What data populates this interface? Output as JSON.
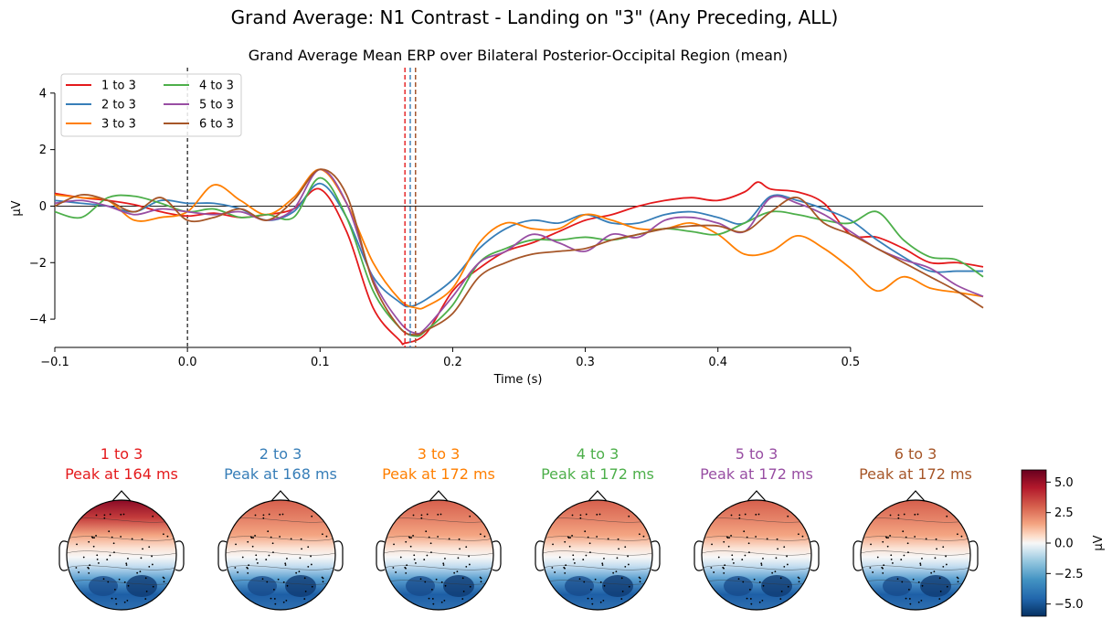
{
  "figure": {
    "suptitle": "Grand Average: N1 Contrast - Landing on \"3\" (Any Preceding, ALL)"
  },
  "chart_data": [
    {
      "type": "line",
      "title": "Grand Average Mean ERP over Bilateral Posterior-Occipital Region (mean)",
      "xlabel": "Time (s)",
      "ylabel": "µV",
      "xlim": [
        -0.1,
        0.6
      ],
      "ylim": [
        -5,
        4.9
      ],
      "xticks": [
        -0.1,
        0.0,
        0.1,
        0.2,
        0.3,
        0.4,
        0.5
      ],
      "xtick_labels": [
        "−0.1",
        "0.0",
        "0.1",
        "0.2",
        "0.3",
        "0.4",
        "0.5"
      ],
      "yticks": [
        -4,
        -2,
        0,
        2,
        4
      ],
      "ytick_labels": [
        "−4",
        "−2",
        "0",
        "2",
        "4"
      ],
      "zero_line": true,
      "stimulus_onset_line": 0.0,
      "legend_placement": "top-left",
      "legend_columns": 2,
      "series": [
        {
          "name": "1 to 3",
          "color": "#e41a1c",
          "peak_latency_s": 0.164,
          "x": [
            -0.1,
            -0.08,
            -0.06,
            -0.04,
            -0.02,
            0.0,
            0.02,
            0.04,
            0.06,
            0.08,
            0.1,
            0.12,
            0.14,
            0.16,
            0.164,
            0.18,
            0.2,
            0.22,
            0.24,
            0.26,
            0.28,
            0.3,
            0.32,
            0.34,
            0.36,
            0.38,
            0.4,
            0.42,
            0.43,
            0.44,
            0.46,
            0.48,
            0.5,
            0.52,
            0.54,
            0.56,
            0.58,
            0.6
          ],
          "y": [
            0.45,
            0.3,
            0.2,
            0.05,
            -0.2,
            -0.35,
            -0.25,
            -0.4,
            -0.3,
            -0.1,
            0.6,
            -0.9,
            -3.6,
            -4.75,
            -4.85,
            -4.5,
            -3.0,
            -2.2,
            -1.6,
            -1.3,
            -0.9,
            -0.5,
            -0.3,
            0.0,
            0.2,
            0.3,
            0.2,
            0.5,
            0.85,
            0.6,
            0.5,
            0.1,
            -1.0,
            -1.1,
            -1.5,
            -2.0,
            -2.0,
            -2.15
          ]
        },
        {
          "name": "2 to 3",
          "color": "#377eb8",
          "peak_latency_s": 0.168,
          "x": [
            -0.1,
            -0.08,
            -0.06,
            -0.04,
            -0.02,
            0.0,
            0.02,
            0.04,
            0.06,
            0.08,
            0.1,
            0.12,
            0.14,
            0.16,
            0.168,
            0.18,
            0.2,
            0.22,
            0.24,
            0.26,
            0.28,
            0.3,
            0.32,
            0.34,
            0.36,
            0.38,
            0.4,
            0.42,
            0.44,
            0.46,
            0.48,
            0.5,
            0.52,
            0.54,
            0.56,
            0.58,
            0.6
          ],
          "y": [
            0.2,
            0.1,
            0.0,
            -0.2,
            0.2,
            0.1,
            0.1,
            -0.1,
            -0.5,
            -0.2,
            0.8,
            -0.4,
            -2.5,
            -3.4,
            -3.55,
            -3.3,
            -2.6,
            -1.5,
            -0.8,
            -0.5,
            -0.6,
            -0.3,
            -0.6,
            -0.6,
            -0.3,
            -0.2,
            -0.4,
            -0.6,
            0.35,
            0.2,
            -0.1,
            -0.5,
            -1.2,
            -1.8,
            -2.3,
            -2.3,
            -2.3
          ]
        },
        {
          "name": "3 to 3",
          "color": "#ff7f00",
          "peak_latency_s": 0.172,
          "x": [
            -0.1,
            -0.08,
            -0.06,
            -0.04,
            -0.02,
            0.0,
            0.02,
            0.04,
            0.06,
            0.08,
            0.1,
            0.12,
            0.14,
            0.16,
            0.172,
            0.18,
            0.2,
            0.22,
            0.24,
            0.26,
            0.28,
            0.3,
            0.32,
            0.34,
            0.36,
            0.38,
            0.4,
            0.42,
            0.44,
            0.46,
            0.48,
            0.5,
            0.52,
            0.54,
            0.56,
            0.58,
            0.6
          ],
          "y": [
            0.4,
            0.3,
            0.2,
            -0.5,
            -0.4,
            -0.2,
            0.75,
            0.2,
            -0.3,
            0.3,
            1.3,
            0.1,
            -2.0,
            -3.3,
            -3.6,
            -3.55,
            -2.9,
            -1.3,
            -0.6,
            -0.8,
            -0.8,
            -0.3,
            -0.5,
            -0.8,
            -0.8,
            -0.6,
            -1.0,
            -1.7,
            -1.6,
            -1.05,
            -1.5,
            -2.2,
            -3.0,
            -2.5,
            -2.9,
            -3.05,
            -3.2
          ]
        },
        {
          "name": "4 to 3",
          "color": "#4daf4a",
          "peak_latency_s": 0.172,
          "x": [
            -0.1,
            -0.08,
            -0.06,
            -0.04,
            -0.02,
            0.0,
            0.02,
            0.04,
            0.06,
            0.08,
            0.1,
            0.12,
            0.14,
            0.16,
            0.172,
            0.18,
            0.2,
            0.22,
            0.24,
            0.26,
            0.28,
            0.3,
            0.32,
            0.34,
            0.36,
            0.38,
            0.4,
            0.42,
            0.44,
            0.46,
            0.48,
            0.5,
            0.52,
            0.54,
            0.56,
            0.58,
            0.6
          ],
          "y": [
            -0.2,
            -0.4,
            0.3,
            0.35,
            0.1,
            -0.2,
            -0.1,
            -0.4,
            -0.3,
            -0.4,
            1.0,
            -0.4,
            -3.0,
            -4.3,
            -4.6,
            -4.4,
            -3.5,
            -2.0,
            -1.5,
            -1.2,
            -1.2,
            -1.1,
            -1.2,
            -1.0,
            -0.8,
            -0.9,
            -1.0,
            -0.6,
            -0.2,
            -0.3,
            -0.5,
            -0.6,
            -0.2,
            -1.2,
            -1.8,
            -1.9,
            -2.5
          ]
        },
        {
          "name": "5 to 3",
          "color": "#984ea3",
          "peak_latency_s": 0.172,
          "x": [
            -0.1,
            -0.08,
            -0.06,
            -0.04,
            -0.02,
            0.0,
            0.02,
            0.04,
            0.06,
            0.08,
            0.1,
            0.12,
            0.14,
            0.16,
            0.172,
            0.18,
            0.2,
            0.22,
            0.24,
            0.26,
            0.28,
            0.3,
            0.32,
            0.34,
            0.36,
            0.38,
            0.4,
            0.42,
            0.44,
            0.46,
            0.48,
            0.5,
            0.52,
            0.54,
            0.56,
            0.58,
            0.6
          ],
          "y": [
            0.1,
            0.2,
            0.0,
            -0.3,
            -0.1,
            -0.2,
            -0.3,
            -0.2,
            -0.5,
            -0.1,
            1.3,
            0.1,
            -2.6,
            -4.1,
            -4.5,
            -4.3,
            -3.2,
            -2.0,
            -1.6,
            -1.0,
            -1.3,
            -1.6,
            -1.0,
            -1.1,
            -0.5,
            -0.4,
            -0.6,
            -0.9,
            0.3,
            0.1,
            -0.3,
            -0.9,
            -1.5,
            -1.9,
            -2.2,
            -2.8,
            -3.2
          ]
        },
        {
          "name": "6 to 3",
          "color": "#a65628",
          "peak_latency_s": 0.172,
          "x": [
            -0.1,
            -0.08,
            -0.06,
            -0.04,
            -0.02,
            0.0,
            0.02,
            0.04,
            0.06,
            0.08,
            0.1,
            0.12,
            0.14,
            0.16,
            0.172,
            0.18,
            0.2,
            0.22,
            0.24,
            0.26,
            0.28,
            0.3,
            0.32,
            0.34,
            0.36,
            0.38,
            0.4,
            0.42,
            0.44,
            0.46,
            0.48,
            0.5,
            0.52,
            0.54,
            0.56,
            0.58,
            0.6
          ],
          "y": [
            0.0,
            0.4,
            0.2,
            -0.2,
            0.3,
            -0.5,
            -0.4,
            -0.1,
            -0.5,
            0.2,
            1.3,
            0.4,
            -2.7,
            -4.3,
            -4.55,
            -4.4,
            -3.8,
            -2.5,
            -2.0,
            -1.7,
            -1.6,
            -1.5,
            -1.2,
            -1.0,
            -0.8,
            -0.7,
            -0.7,
            -0.9,
            -0.2,
            0.3,
            -0.6,
            -1.0,
            -1.5,
            -2.0,
            -2.5,
            -3.0,
            -3.6
          ]
        }
      ]
    },
    {
      "type": "heatmap",
      "subtype": "topomap",
      "colormap": "RdBu_r",
      "colorbar_label": "µV",
      "vlim": [
        -6,
        6
      ],
      "colorbar_ticks": [
        5.0,
        2.5,
        0.0,
        -2.5,
        -5.0
      ],
      "colorbar_tick_labels": [
        "5.0",
        "2.5",
        "0.0",
        "−2.5",
        "−5.0"
      ],
      "maps": [
        {
          "condition": "1 to 3",
          "peak_label": "Peak at 164 ms",
          "color": "#e41a1c",
          "frontal_max": 5.5,
          "posterior_min": -5.5
        },
        {
          "condition": "2 to 3",
          "peak_label": "Peak at 168 ms",
          "color": "#377eb8",
          "frontal_max": 3.0,
          "posterior_min": -4.5
        },
        {
          "condition": "3 to 3",
          "peak_label": "Peak at 172 ms",
          "color": "#ff7f00",
          "frontal_max": 3.0,
          "posterior_min": -4.5
        },
        {
          "condition": "4 to 3",
          "peak_label": "Peak at 172 ms",
          "color": "#4daf4a",
          "frontal_max": 4.0,
          "posterior_min": -5.5
        },
        {
          "condition": "5 to 3",
          "peak_label": "Peak at 172 ms",
          "color": "#984ea3",
          "frontal_max": 3.5,
          "posterior_min": -5.5
        },
        {
          "condition": "6 to 3",
          "peak_label": "Peak at 172 ms",
          "color": "#a65628",
          "frontal_max": 4.5,
          "posterior_min": -5.5
        }
      ]
    }
  ]
}
